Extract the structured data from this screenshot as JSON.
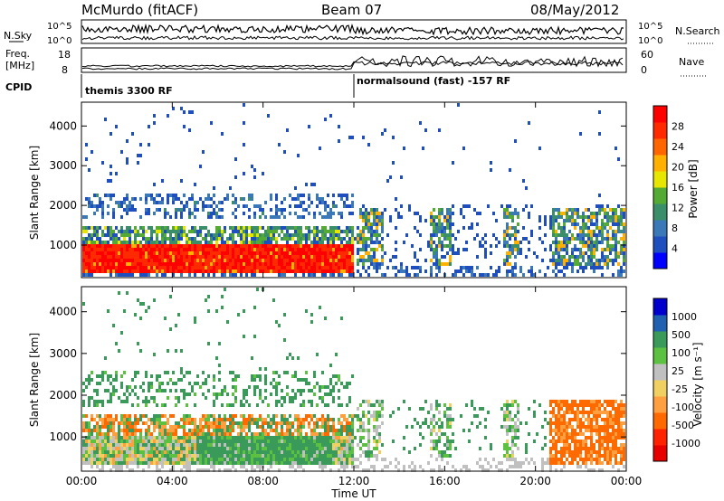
{
  "header": {
    "station": "McMurdo (fitACF)",
    "beam": "Beam 07",
    "date": "08/May/2012"
  },
  "noise_panel": {
    "left_label": "N.Sky",
    "right_label": "N.Search",
    "left_ticks": [
      "10^5",
      "10^0"
    ],
    "right_ticks": [
      "10^5",
      "10^0"
    ]
  },
  "freq_panel": {
    "left_label_1": "Freq.",
    "left_label_2": "[MHz]",
    "right_label": "Nave",
    "left_ticks": [
      "18",
      "8"
    ],
    "right_ticks": [
      "60",
      "0"
    ]
  },
  "cpid": {
    "label": "CPID",
    "segments": [
      {
        "name": "themis 3300 RF",
        "start_hour": 0
      },
      {
        "name": "normalsound (fast) -157 RF",
        "start_hour": 12
      }
    ]
  },
  "chart_data": [
    {
      "type": "heatmap",
      "panel": "power",
      "ylabel": "Slant Range [km]",
      "y_ticks": [
        1000,
        2000,
        3000,
        4000
      ],
      "ylim": [
        180,
        4600
      ],
      "colorbar_label": "Power [dB]",
      "colorbar_ticks": [
        4,
        8,
        12,
        16,
        20,
        24,
        28
      ],
      "colorbar_colors": [
        "#0000ff",
        "#1f4fbf",
        "#3a78b8",
        "#3a8f6a",
        "#55aa33",
        "#e6e600",
        "#ffb000",
        "#ff6600",
        "#ff2a00",
        "#ff0000"
      ],
      "x_ticks": [
        "00:00",
        "04:00",
        "08:00",
        "12:00",
        "16:00",
        "20:00",
        "00:00"
      ],
      "xlim_hours": [
        0,
        24
      ]
    },
    {
      "type": "heatmap",
      "panel": "velocity",
      "ylabel": "Slant Range [km]",
      "y_ticks": [
        1000,
        2000,
        3000,
        4000
      ],
      "ylim": [
        180,
        4600
      ],
      "colorbar_label": "Velocity [m s⁻¹]",
      "colorbar_ticks": [
        "1000",
        "500",
        "100",
        "25",
        "-25",
        "-100",
        "-500",
        "-1000"
      ],
      "colorbar_colors": [
        "#0000cc",
        "#2060b0",
        "#3a9a5a",
        "#5cc040",
        "#c0c0c0",
        "#f0d060",
        "#ffa040",
        "#ff6a00",
        "#ff2200",
        "#e60000"
      ],
      "xlabel": "Time UT",
      "x_ticks": [
        "00:00",
        "04:00",
        "08:00",
        "12:00",
        "16:00",
        "20:00",
        "00:00"
      ],
      "xlim_hours": [
        0,
        24
      ]
    }
  ]
}
